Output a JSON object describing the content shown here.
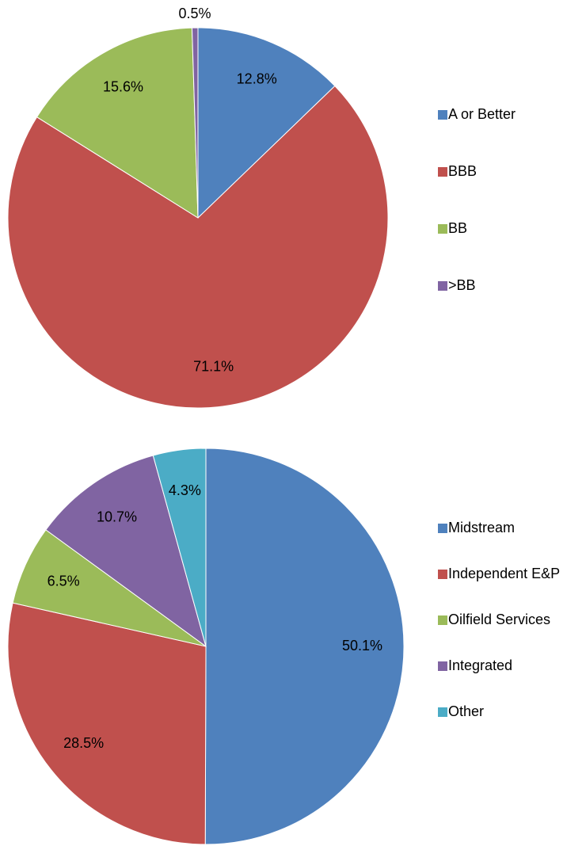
{
  "chart_data": [
    {
      "type": "pie",
      "categories": [
        "A or Better",
        "BBB",
        "BB",
        ">BB"
      ],
      "values": [
        12.8,
        71.1,
        15.6,
        0.5
      ],
      "value_labels": [
        "12.8%",
        "71.1%",
        "15.6%",
        "0.5%"
      ],
      "colors": [
        "#4f81bd",
        "#c0504d",
        "#9bbb59",
        "#8064a2"
      ],
      "legend": "right"
    },
    {
      "type": "pie",
      "categories": [
        "Midstream",
        "Independent E&P",
        "Oilfield Services",
        "Integrated",
        "Other"
      ],
      "values": [
        50.1,
        28.5,
        6.5,
        10.7,
        4.3
      ],
      "value_labels": [
        "50.1%",
        "28.5%",
        "6.5%",
        "10.7%",
        "4.3%"
      ],
      "colors": [
        "#4f81bd",
        "#c0504d",
        "#9bbb59",
        "#8064a2",
        "#4bacc6"
      ],
      "legend": "right"
    }
  ]
}
